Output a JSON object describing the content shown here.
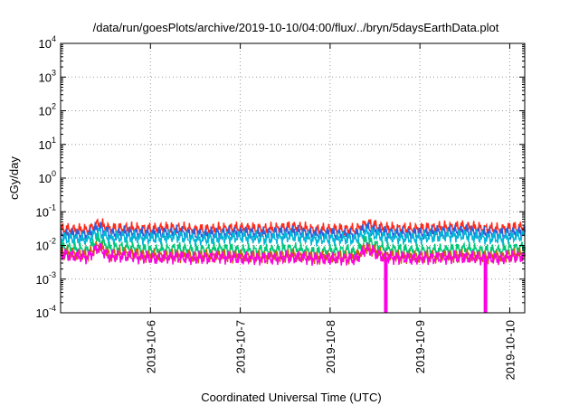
{
  "chart_data": {
    "type": "line",
    "title": "/data/run/goesPlots/archive/2019-10-10/04:00/flux/../bryn/5daysEarthData.plot",
    "xlabel": "Coordinated Universal Time (UTC)",
    "ylabel": "cGy/day",
    "x_range": [
      "2019-10-05T00:00",
      "2019-10-10T04:00"
    ],
    "x_ticks": [
      "2019-10-6",
      "2019-10-7",
      "2019-10-8",
      "2019-10-9",
      "2019-10-10"
    ],
    "y_scale": "log",
    "y_range": [
      0.0001,
      10000
    ],
    "y_ticks": [
      {
        "base": "10",
        "exp": "-4"
      },
      {
        "base": "10",
        "exp": "-3"
      },
      {
        "base": "10",
        "exp": "-2"
      },
      {
        "base": "10",
        "exp": "-1"
      },
      {
        "base": "10",
        "exp": "0"
      },
      {
        "base": "10",
        "exp": "1"
      },
      {
        "base": "10",
        "exp": "2"
      },
      {
        "base": "10",
        "exp": "3"
      },
      {
        "base": "10",
        "exp": "4"
      }
    ],
    "grid": true,
    "legend": "none",
    "series": [
      {
        "color": "#ff2a1a",
        "x_days": [
          0,
          0.3,
          0.42,
          0.55,
          0.7,
          1.0,
          1.3,
          1.5,
          1.8,
          2.0,
          2.3,
          2.6,
          2.85,
          3.0,
          3.2,
          3.28,
          3.4,
          3.6,
          3.9,
          4.2,
          4.5,
          4.7,
          4.9,
          5.0,
          5.17
        ],
        "values": [
          0.03,
          0.028,
          0.045,
          0.03,
          0.032,
          0.03,
          0.033,
          0.028,
          0.031,
          0.032,
          0.03,
          0.035,
          0.028,
          0.03,
          0.029,
          0.028,
          0.045,
          0.032,
          0.03,
          0.033,
          0.036,
          0.031,
          0.03,
          0.032,
          0.034
        ]
      },
      {
        "color": "#2a60e0",
        "x_days": [
          0,
          0.3,
          0.42,
          0.55,
          0.7,
          1.0,
          1.3,
          1.5,
          1.8,
          2.0,
          2.3,
          2.6,
          2.85,
          3.0,
          3.2,
          3.28,
          3.4,
          3.6,
          3.9,
          4.2,
          4.5,
          4.7,
          4.9,
          5.0,
          5.17
        ],
        "values": [
          0.022,
          0.02,
          0.035,
          0.022,
          0.024,
          0.022,
          0.025,
          0.021,
          0.023,
          0.024,
          0.022,
          0.026,
          0.021,
          0.022,
          0.021,
          0.02,
          0.033,
          0.024,
          0.022,
          0.025,
          0.027,
          0.023,
          0.022,
          0.024,
          0.025
        ]
      },
      {
        "color": "#00b8d8",
        "x_days": [
          0,
          0.3,
          0.42,
          0.55,
          0.7,
          1.0,
          1.3,
          1.5,
          1.8,
          2.0,
          2.3,
          2.6,
          2.85,
          3.0,
          3.2,
          3.28,
          3.4,
          3.6,
          3.9,
          4.2,
          4.5,
          4.7,
          4.9,
          5.0,
          5.17
        ],
        "values": [
          0.016,
          0.015,
          0.025,
          0.016,
          0.018,
          0.016,
          0.019,
          0.015,
          0.017,
          0.018,
          0.016,
          0.019,
          0.015,
          0.016,
          0.016,
          0.015,
          0.024,
          0.018,
          0.016,
          0.019,
          0.02,
          0.017,
          0.016,
          0.018,
          0.019
        ]
      },
      {
        "color": "#00c878",
        "x_days": [
          0,
          0.3,
          0.42,
          0.55,
          0.7,
          1.0,
          1.3,
          1.5,
          1.8,
          2.0,
          2.3,
          2.6,
          2.85,
          3.0,
          3.2,
          3.28,
          3.4,
          3.6,
          3.9,
          4.2,
          4.5,
          4.7,
          4.9,
          5.0,
          5.17
        ],
        "values": [
          0.009,
          0.007,
          0.015,
          0.008,
          0.009,
          0.007,
          0.008,
          0.007,
          0.008,
          0.007,
          0.007,
          0.008,
          0.006,
          0.007,
          0.007,
          0.006,
          0.014,
          0.008,
          0.007,
          0.007,
          0.008,
          0.007,
          0.007,
          0.008,
          0.009
        ]
      },
      {
        "color": "#c86400",
        "x_days": [
          0,
          0.3,
          0.42,
          0.55,
          0.7,
          1.0,
          1.3,
          1.5,
          1.8,
          2.0,
          2.3,
          2.6,
          2.85,
          3.0,
          3.2,
          3.28,
          3.4,
          3.6,
          3.9,
          4.2,
          4.5,
          4.7,
          4.9,
          5.0,
          5.17
        ],
        "values": [
          0.006,
          0.005,
          0.01,
          0.005,
          0.006,
          0.0048,
          0.005,
          0.0046,
          0.005,
          0.0047,
          0.0046,
          0.005,
          0.0044,
          0.0045,
          0.0044,
          0.0043,
          0.009,
          0.005,
          0.0045,
          0.0047,
          0.005,
          0.0046,
          0.0045,
          0.005,
          0.0055
        ]
      },
      {
        "color": "#ff00e6",
        "x_days": [
          0,
          0.3,
          0.42,
          0.55,
          0.7,
          1.0,
          1.3,
          1.5,
          1.8,
          2.0,
          2.3,
          2.6,
          2.85,
          3.0,
          3.2,
          3.28,
          3.4,
          3.6,
          3.9,
          4.2,
          4.5,
          4.7,
          4.9,
          5.0,
          5.17
        ],
        "values": [
          0.0055,
          0.0045,
          0.009,
          0.0045,
          0.005,
          0.0042,
          0.0045,
          0.0042,
          0.0045,
          0.0042,
          0.0041,
          0.0045,
          0.004,
          0.0041,
          0.004,
          0.0039,
          0.008,
          0.0045,
          0.0041,
          0.0043,
          0.0045,
          0.0042,
          0.0041,
          0.0045,
          0.005
        ]
      }
    ]
  }
}
